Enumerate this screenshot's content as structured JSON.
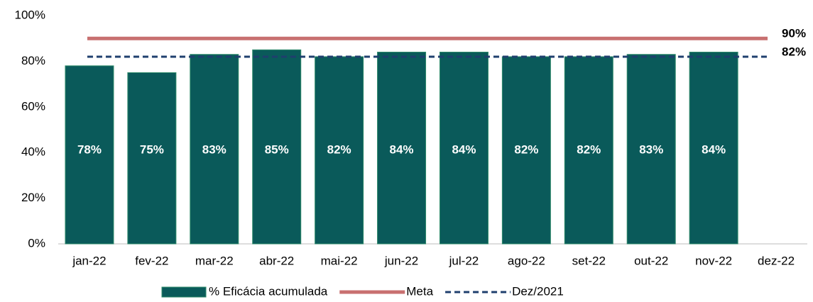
{
  "chart_data": {
    "type": "bar",
    "categories": [
      "jan-22",
      "fev-22",
      "mar-22",
      "abr-22",
      "mai-22",
      "jun-22",
      "jul-22",
      "ago-22",
      "set-22",
      "out-22",
      "nov-22",
      "dez-22"
    ],
    "series": [
      {
        "name": "% Eficácia acumulada",
        "type": "bar",
        "color": "#0a5a5a",
        "values": [
          78,
          75,
          83,
          85,
          82,
          84,
          84,
          82,
          82,
          83,
          84,
          null
        ],
        "value_labels": [
          "78%",
          "75%",
          "83%",
          "85%",
          "82%",
          "84%",
          "84%",
          "82%",
          "82%",
          "83%",
          "84%",
          null
        ]
      },
      {
        "name": "Meta",
        "type": "line",
        "color": "#c87070",
        "dash": false,
        "values": [
          90,
          90,
          90,
          90,
          90,
          90,
          90,
          90,
          90,
          90,
          90,
          90
        ],
        "end_label": "90%"
      },
      {
        "name": "Dez/2021",
        "type": "line",
        "color": "#1f3f6e",
        "dash": true,
        "values": [
          82,
          82,
          82,
          82,
          82,
          82,
          82,
          82,
          82,
          82,
          82,
          82
        ],
        "end_label": "82%"
      }
    ],
    "ylim": [
      0,
      100
    ],
    "yticks": [
      {
        "value": 0,
        "label": "0%"
      },
      {
        "value": 20,
        "label": "20%"
      },
      {
        "value": 40,
        "label": "40%"
      },
      {
        "value": 60,
        "label": "60%"
      },
      {
        "value": 80,
        "label": "80%"
      },
      {
        "value": 100,
        "label": "100%"
      }
    ],
    "grid": false,
    "legend": "bottom"
  }
}
